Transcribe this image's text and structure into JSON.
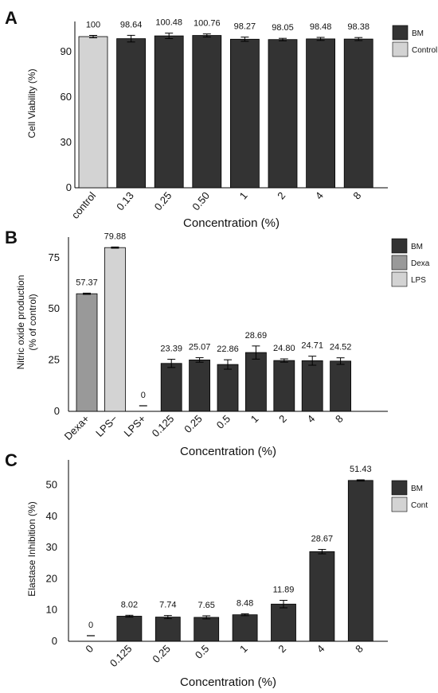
{
  "chart_data": [
    {
      "panel_label": "A",
      "type": "bar",
      "ylabel": "Cell Viability (%)",
      "xlabel": "Concentration (%)",
      "ylim": [
        0,
        110
      ],
      "yticks": [
        0,
        30,
        60,
        90
      ],
      "legend": {
        "placement": "right",
        "entries": [
          {
            "label": "BM",
            "color": "#333333"
          },
          {
            "label": "Control",
            "color": "#d3d3d3"
          }
        ]
      },
      "bars": [
        {
          "category": "control",
          "value": 100,
          "error": 0.8,
          "label": "100",
          "group": "Control",
          "color": "#d3d3d3"
        },
        {
          "category": "0.13",
          "value": 98.64,
          "error": 2.2,
          "label": "98.64",
          "group": "BM",
          "color": "#333333"
        },
        {
          "category": "0.25",
          "value": 100.48,
          "error": 1.8,
          "label": "100.48",
          "group": "BM",
          "color": "#333333"
        },
        {
          "category": "0.50",
          "value": 100.76,
          "error": 1.0,
          "label": "100.76",
          "group": "BM",
          "color": "#333333"
        },
        {
          "category": "1",
          "value": 98.27,
          "error": 1.4,
          "label": "98.27",
          "group": "BM",
          "color": "#333333"
        },
        {
          "category": "2",
          "value": 98.05,
          "error": 0.8,
          "label": "98.05",
          "group": "BM",
          "color": "#333333"
        },
        {
          "category": "4",
          "value": 98.48,
          "error": 1.0,
          "label": "98.48",
          "group": "BM",
          "color": "#333333"
        },
        {
          "category": "8",
          "value": 98.38,
          "error": 1.0,
          "label": "98.38",
          "group": "BM",
          "color": "#333333"
        }
      ]
    },
    {
      "panel_label": "B",
      "type": "bar",
      "ylabel": "Nitric oxide production\n(% of control)",
      "xlabel": "Concentration (%)",
      "ylim": [
        0,
        85
      ],
      "yticks": [
        0,
        25,
        50,
        75
      ],
      "legend": {
        "placement": "right",
        "entries": [
          {
            "label": "BM",
            "color": "#333333"
          },
          {
            "label": "Dexa",
            "color": "#999999"
          },
          {
            "label": "LPS",
            "color": "#d3d3d3"
          }
        ]
      },
      "bars": [
        {
          "category": "Dexa+",
          "value": 57.37,
          "error": 0.3,
          "label": "57.37",
          "group": "Dexa",
          "color": "#999999"
        },
        {
          "category": "LPS−",
          "value": 79.88,
          "error": 0.3,
          "label": "79.88",
          "group": "LPS",
          "color": "#d3d3d3"
        },
        {
          "category": "LPS+",
          "value": 0,
          "error": 0,
          "label": "0",
          "group": "LPS",
          "color": "#d3d3d3"
        },
        {
          "category": "0.125",
          "value": 23.39,
          "error": 2.0,
          "label": "23.39",
          "group": "BM",
          "color": "#333333"
        },
        {
          "category": "0.25",
          "value": 25.07,
          "error": 1.1,
          "label": "25.07",
          "group": "BM",
          "color": "#333333"
        },
        {
          "category": "0.5",
          "value": 22.86,
          "error": 2.3,
          "label": "22.86",
          "group": "BM",
          "color": "#333333"
        },
        {
          "category": "1",
          "value": 28.69,
          "error": 3.2,
          "label": "28.69",
          "group": "BM",
          "color": "#333333"
        },
        {
          "category": "2",
          "value": 24.8,
          "error": 0.8,
          "label": "24.80",
          "group": "BM",
          "color": "#333333"
        },
        {
          "category": "4",
          "value": 24.71,
          "error": 2.2,
          "label": "24.71",
          "group": "BM",
          "color": "#333333"
        },
        {
          "category": "8",
          "value": 24.52,
          "error": 1.6,
          "label": "24.52",
          "group": "BM",
          "color": "#333333"
        }
      ]
    },
    {
      "panel_label": "C",
      "type": "bar",
      "ylabel": "Elastase Inhibition (%)",
      "xlabel": "Concentration (%)",
      "ylim": [
        0,
        58
      ],
      "yticks": [
        0,
        10,
        20,
        30,
        40,
        50
      ],
      "legend": {
        "placement": "right",
        "entries": [
          {
            "label": "BM",
            "color": "#333333"
          },
          {
            "label": "Cont",
            "color": "#d3d3d3"
          }
        ]
      },
      "bars": [
        {
          "category": "0",
          "value": 0,
          "error": 0,
          "label": "0",
          "group": "Cont",
          "color": "#d3d3d3"
        },
        {
          "category": "0.125",
          "value": 8.02,
          "error": 0.3,
          "label": "8.02",
          "group": "BM",
          "color": "#333333"
        },
        {
          "category": "0.25",
          "value": 7.74,
          "error": 0.5,
          "label": "7.74",
          "group": "BM",
          "color": "#333333"
        },
        {
          "category": "0.5",
          "value": 7.65,
          "error": 0.5,
          "label": "7.65",
          "group": "BM",
          "color": "#333333"
        },
        {
          "category": "1",
          "value": 8.48,
          "error": 0.3,
          "label": "8.48",
          "group": "BM",
          "color": "#333333"
        },
        {
          "category": "2",
          "value": 11.89,
          "error": 1.2,
          "label": "11.89",
          "group": "BM",
          "color": "#333333"
        },
        {
          "category": "4",
          "value": 28.67,
          "error": 0.7,
          "label": "28.67",
          "group": "BM",
          "color": "#333333"
        },
        {
          "category": "8",
          "value": 51.43,
          "error": 0.2,
          "label": "51.43",
          "group": "BM",
          "color": "#333333"
        }
      ]
    }
  ]
}
